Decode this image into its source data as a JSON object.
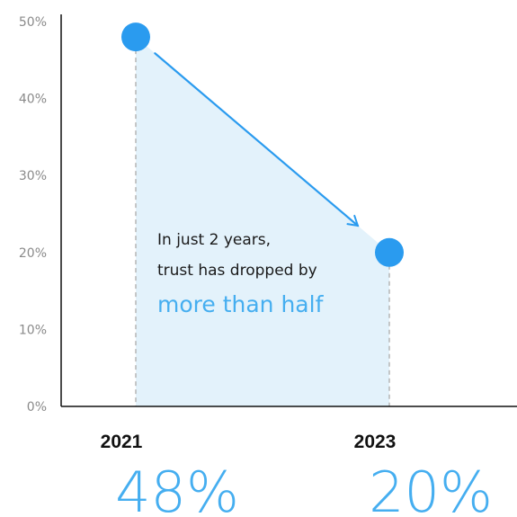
{
  "colors": {
    "accent": "#2a9bef",
    "highlight_text": "#45aef0",
    "fill": "#e3f2fb",
    "axis": "#111111",
    "tick_text": "#8a8a8a",
    "guide": "#b5b5b5"
  },
  "chart_data": {
    "type": "area",
    "y_ticks": [
      "0%",
      "10%",
      "20%",
      "30%",
      "40%",
      "50%"
    ],
    "ylim": [
      0,
      50
    ],
    "categories": [
      "2021",
      "2023"
    ],
    "values": [
      48,
      20
    ],
    "value_labels": [
      "48%",
      "20%"
    ],
    "annotation": {
      "line1": "In just 2 years,",
      "line2": "trust has dropped by",
      "highlight": "more than half"
    },
    "grid": false,
    "xlabel": "",
    "ylabel": ""
  }
}
